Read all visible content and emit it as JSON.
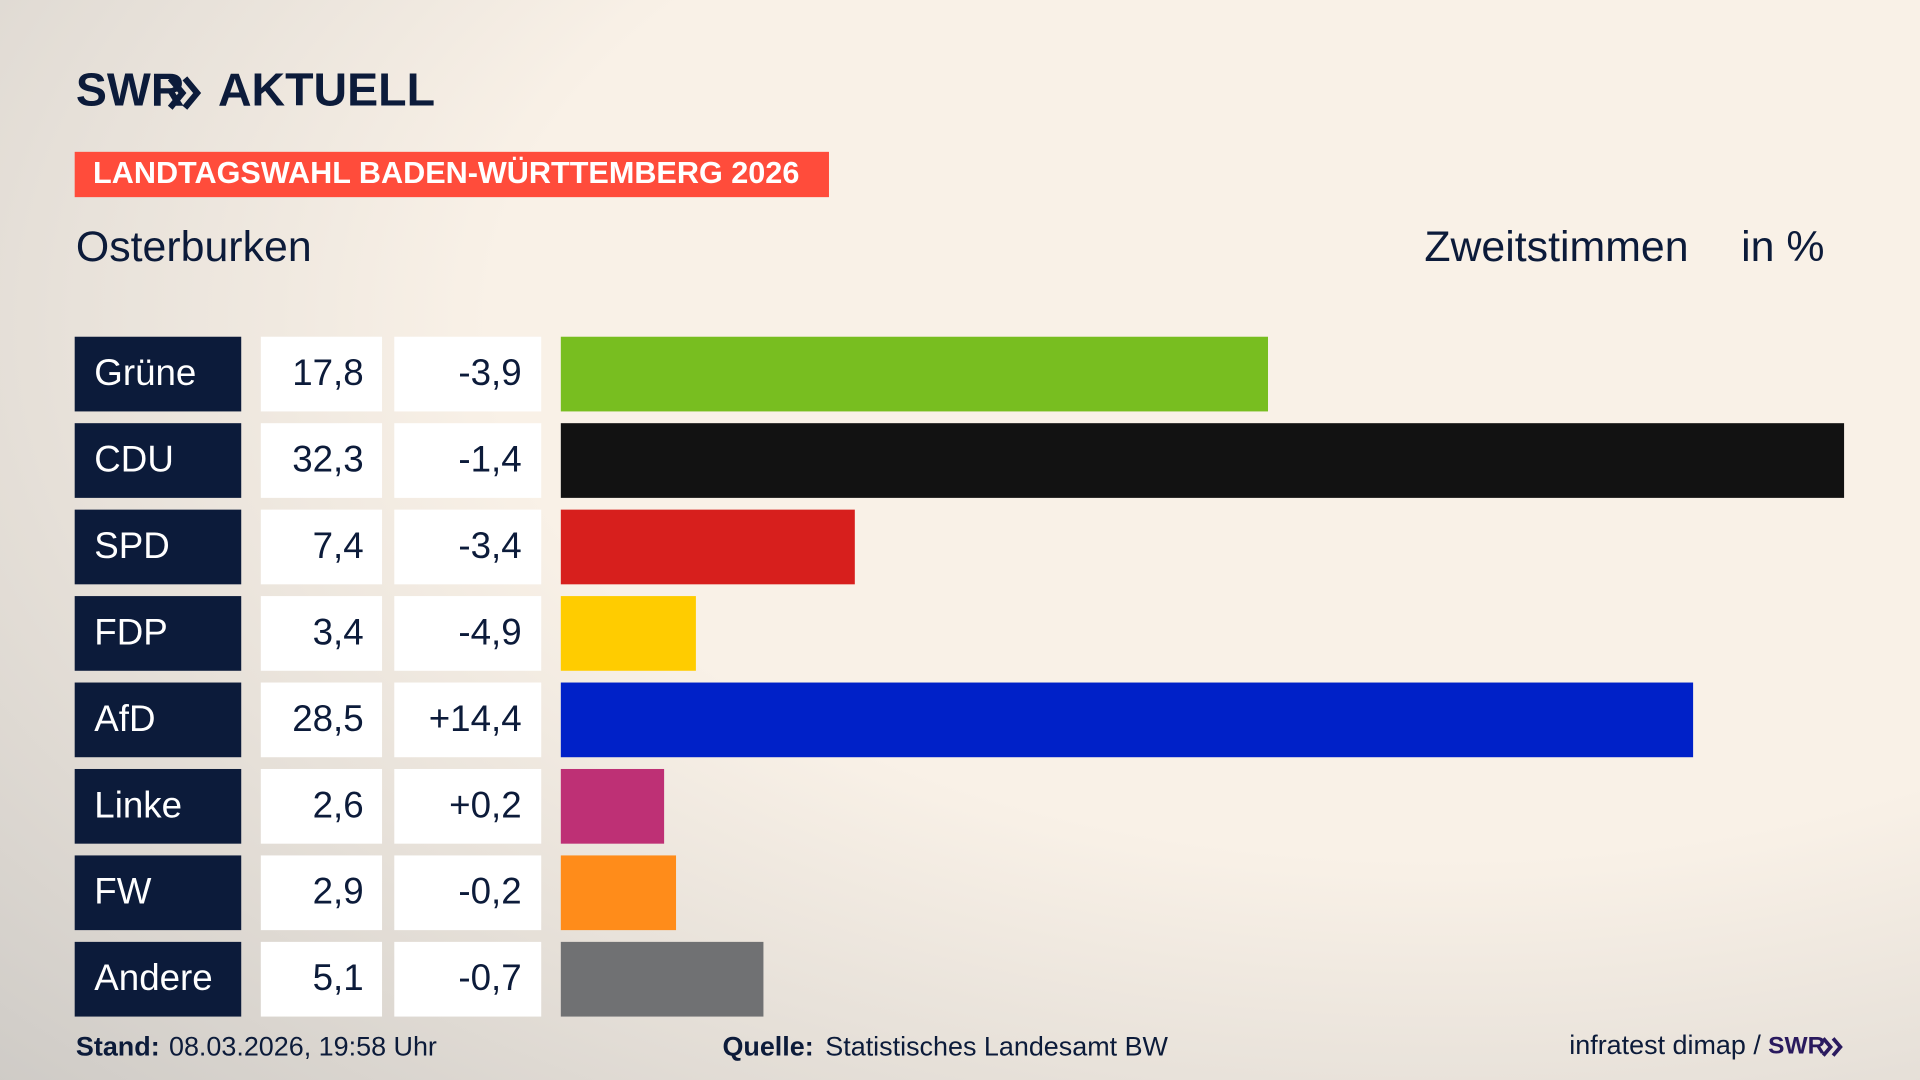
{
  "header": {
    "logo_left": "SWR",
    "logo_right": "AKTUELL"
  },
  "chart_data": {
    "type": "bar",
    "title": "LANDTAGSWAHL BADEN-WÜRTTEMBERG 2026",
    "subtitle": "Osterburken",
    "measure": "Zweitstimmen",
    "unit": "in %",
    "categories": [
      "Grüne",
      "CDU",
      "SPD",
      "FDP",
      "AfD",
      "Linke",
      "FW",
      "Andere"
    ],
    "values": [
      17.8,
      32.3,
      7.4,
      3.4,
      28.5,
      2.6,
      2.9,
      5.1
    ],
    "value_labels": [
      "17,8",
      "32,3",
      "7,4",
      "3,4",
      "28,5",
      "2,6",
      "2,9",
      "5,1"
    ],
    "changes": [
      {
        "value": -3.9,
        "label": "-3,9"
      },
      {
        "value": -1.4,
        "label": "-1,4"
      },
      {
        "value": -3.4,
        "label": "-3,4"
      },
      {
        "value": -4.9,
        "label": "-4,9"
      },
      {
        "value": 14.4,
        "label": "+14,4"
      },
      {
        "value": 0.2,
        "label": "+0,2"
      },
      {
        "value": -0.2,
        "label": "-0,2"
      },
      {
        "value": -0.7,
        "label": "-0,7"
      }
    ],
    "colors": [
      "#78be20",
      "#121212",
      "#d71f1d",
      "#ffcc00",
      "#0021c8",
      "#be3075",
      "#ff8c1a",
      "#707173"
    ]
  },
  "footer": {
    "stand_label": "Stand:",
    "stand": "08.03.2026, 19:58 Uhr",
    "source_label": "Quelle:",
    "source": "Statistisches Landesamt BW",
    "credit": "infratest dimap /",
    "brand": "SWR"
  }
}
